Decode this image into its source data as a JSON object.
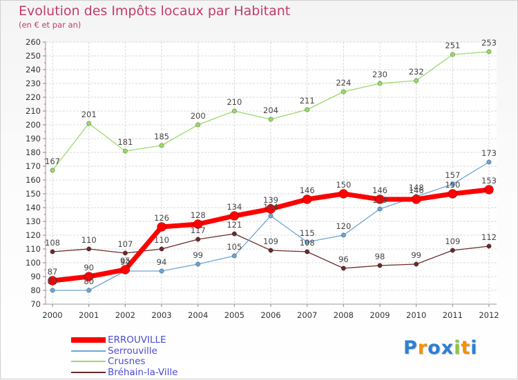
{
  "header": {
    "title": "Evolution des Impôts locaux par Habitant",
    "subtitle": "(en € et par an)"
  },
  "chart_data": {
    "type": "line",
    "x": [
      "2000",
      "2001",
      "2002",
      "2003",
      "2004",
      "2005",
      "2006",
      "2007",
      "2008",
      "2009",
      "2010",
      "2011",
      "2012"
    ],
    "ylim": [
      70,
      260
    ],
    "yticks": [
      70,
      80,
      90,
      100,
      110,
      120,
      130,
      140,
      150,
      160,
      170,
      180,
      190,
      200,
      210,
      220,
      230,
      240,
      250,
      260
    ],
    "grid": true,
    "legend_position": "bottom-left",
    "series": [
      {
        "name": "ERROUVILLE",
        "color": "#ff0000",
        "values": [
          87,
          90,
          95,
          126,
          128,
          134,
          139,
          146,
          150,
          146,
          146,
          150,
          153
        ]
      },
      {
        "name": "Serrouville",
        "color": "#6aa4d4",
        "values": [
          80,
          80,
          94,
          94,
          99,
          105,
          134,
          115,
          120,
          139,
          148,
          157,
          173
        ]
      },
      {
        "name": "Crusnes",
        "color": "#99d96a",
        "values": [
          167,
          201,
          181,
          185,
          200,
          210,
          204,
          211,
          224,
          230,
          232,
          251,
          253
        ]
      },
      {
        "name": "Bréhain-la-Ville",
        "color": "#6b2a2a",
        "values": [
          108,
          110,
          107,
          110,
          117,
          121,
          109,
          108,
          96,
          98,
          99,
          109,
          112
        ]
      }
    ]
  },
  "logo": {
    "letters": [
      "P",
      "r",
      "o",
      "x",
      "i",
      "t",
      "i"
    ],
    "colors": [
      "#2d7fd3",
      "#f39200",
      "#2d7fd3",
      "#2d7fd3",
      "#8cc63f",
      "#f39200",
      "#2d7fd3"
    ]
  }
}
